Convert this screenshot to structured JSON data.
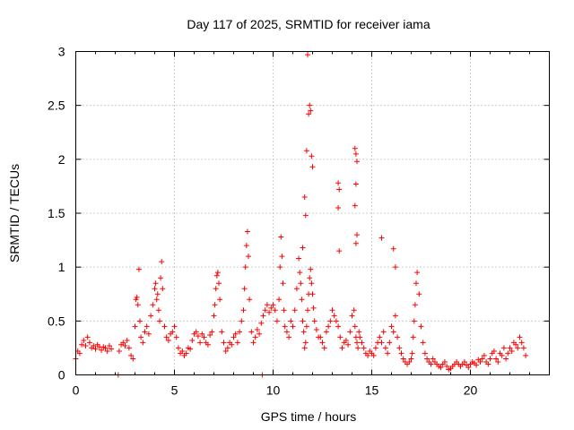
{
  "chart_data": {
    "type": "scatter",
    "title": "Day 117 of 2025, SRMTID for receiver iama",
    "xlabel": "GPS time / hours",
    "ylabel": "SRMTID / TECUs",
    "xlim": [
      0,
      24
    ],
    "ylim": [
      0,
      3
    ],
    "xticks": [
      0,
      5,
      10,
      15,
      20
    ],
    "xtick_labels": [
      "0",
      "5",
      "10",
      "15",
      "20"
    ],
    "yticks": [
      0,
      0.5,
      1,
      1.5,
      2,
      2.5,
      3
    ],
    "ytick_labels": [
      "0",
      "0.5",
      "1",
      "1.5",
      "2",
      "2.5",
      "3"
    ],
    "grid": true,
    "marker": "+",
    "color": "#ff0000",
    "series": [
      {
        "name": "SRMTID",
        "x": [
          0.0,
          0.1,
          0.2,
          0.3,
          0.4,
          0.5,
          0.6,
          0.7,
          0.8,
          0.9,
          1.0,
          1.1,
          1.2,
          1.3,
          1.4,
          1.5,
          1.6,
          1.7,
          1.8,
          2.2,
          2.3,
          2.4,
          2.5,
          2.6,
          2.7,
          2.8,
          2.9,
          3.0,
          3.05,
          3.1,
          3.15,
          3.2,
          3.25,
          3.3,
          3.4,
          3.5,
          3.6,
          3.7,
          3.8,
          3.9,
          4.0,
          4.05,
          4.1,
          4.15,
          4.2,
          4.25,
          4.3,
          4.35,
          4.4,
          4.5,
          4.6,
          4.7,
          4.8,
          4.9,
          5.0,
          5.1,
          5.2,
          5.3,
          5.4,
          5.5,
          5.6,
          5.7,
          5.8,
          5.9,
          6.0,
          6.1,
          6.2,
          6.3,
          6.4,
          6.5,
          6.6,
          6.7,
          6.8,
          6.9,
          7.0,
          7.05,
          7.1,
          7.15,
          7.2,
          7.25,
          7.3,
          7.4,
          7.5,
          7.6,
          7.7,
          7.8,
          7.9,
          8.0,
          8.1,
          8.2,
          8.3,
          8.4,
          8.5,
          8.55,
          8.6,
          8.65,
          8.7,
          8.75,
          8.8,
          8.9,
          9.0,
          9.1,
          9.2,
          9.3,
          9.4,
          9.5,
          9.6,
          9.7,
          9.8,
          9.9,
          10.0,
          10.1,
          10.2,
          10.3,
          10.35,
          10.4,
          10.45,
          10.5,
          10.55,
          10.6,
          10.7,
          10.8,
          10.9,
          11.0,
          11.1,
          11.2,
          11.3,
          11.35,
          11.4,
          11.45,
          11.5,
          11.55,
          11.6,
          11.65,
          11.7,
          11.75,
          11.8,
          11.85,
          11.9,
          11.95,
          12.0,
          12.05,
          12.1,
          12.2,
          12.3,
          12.4,
          12.5,
          12.6,
          12.7,
          12.8,
          12.9,
          13.0,
          13.1,
          13.2,
          13.3,
          13.4,
          13.5,
          13.6,
          13.7,
          13.8,
          13.9,
          14.0,
          14.1,
          14.15,
          14.2,
          14.25,
          14.3,
          14.35,
          14.4,
          14.5,
          14.6,
          14.7,
          14.8,
          14.9,
          15.0,
          15.1,
          15.2,
          15.3,
          15.4,
          15.5,
          15.6,
          15.7,
          15.8,
          15.9,
          16.0,
          16.1,
          16.2,
          16.3,
          16.4,
          16.5,
          16.6,
          16.7,
          16.8,
          16.9,
          17.0,
          17.05,
          17.1,
          17.15,
          17.2,
          17.25,
          17.3,
          17.4,
          17.5,
          17.6,
          17.7,
          17.8,
          17.9,
          18.0,
          18.1,
          18.2,
          18.3,
          18.4,
          18.5,
          18.6,
          18.7,
          18.8,
          18.9,
          19.0,
          19.1,
          19.2,
          19.3,
          19.4,
          19.5,
          19.6,
          19.7,
          19.8,
          19.9,
          20.0,
          20.1,
          20.2,
          20.3,
          20.4,
          20.5,
          20.6,
          20.7,
          20.8,
          20.9,
          21.0,
          21.1,
          21.2,
          21.3,
          21.4,
          21.5,
          21.6,
          21.7,
          21.8,
          21.9,
          22.0,
          22.1,
          22.2,
          22.3,
          22.4,
          22.5,
          22.6,
          22.7,
          22.8,
          2.15,
          9.45,
          11.75,
          11.85,
          11.8,
          11.9,
          11.7,
          11.95,
          11.6,
          12.0,
          11.65,
          11.5,
          13.3,
          13.35,
          13.3,
          13.35,
          14.15,
          14.2,
          14.25,
          14.2,
          14.15,
          14.25,
          14.2,
          15.5,
          16.1,
          16.2
        ],
        "y": [
          0.15,
          0.22,
          0.2,
          0.28,
          0.32,
          0.27,
          0.35,
          0.3,
          0.25,
          0.27,
          0.24,
          0.28,
          0.26,
          0.23,
          0.26,
          0.25,
          0.22,
          0.27,
          0.24,
          0.22,
          0.28,
          0.3,
          0.27,
          0.32,
          0.25,
          0.18,
          0.15,
          0.45,
          0.7,
          0.72,
          0.65,
          0.98,
          0.5,
          0.35,
          0.3,
          0.4,
          0.45,
          0.38,
          0.55,
          0.65,
          0.8,
          0.85,
          0.7,
          0.75,
          0.6,
          0.5,
          0.9,
          1.05,
          0.8,
          0.45,
          0.35,
          0.32,
          0.38,
          0.4,
          0.45,
          0.35,
          0.25,
          0.2,
          0.22,
          0.18,
          0.2,
          0.25,
          0.24,
          0.32,
          0.38,
          0.4,
          0.36,
          0.3,
          0.38,
          0.35,
          0.3,
          0.28,
          0.37,
          0.4,
          0.55,
          0.65,
          0.8,
          0.92,
          0.95,
          0.85,
          0.7,
          0.4,
          0.3,
          0.22,
          0.25,
          0.3,
          0.28,
          0.35,
          0.38,
          0.3,
          0.4,
          0.5,
          0.6,
          0.8,
          1.0,
          1.2,
          1.33,
          1.1,
          0.7,
          0.4,
          0.3,
          0.35,
          0.42,
          0.38,
          0.48,
          0.55,
          0.6,
          0.65,
          0.58,
          0.62,
          0.65,
          0.6,
          0.5,
          0.7,
          1.0,
          1.28,
          1.1,
          0.85,
          0.6,
          0.45,
          0.4,
          0.35,
          0.5,
          0.45,
          0.6,
          0.8,
          1.08,
          0.95,
          0.85,
          0.7,
          0.5,
          0.4,
          0.25,
          0.3,
          0.45,
          0.6,
          0.75,
          0.9,
          0.98,
          0.85,
          0.75,
          0.62,
          0.5,
          0.42,
          0.35,
          0.35,
          0.3,
          0.25,
          0.4,
          0.45,
          0.5,
          0.6,
          0.55,
          0.5,
          0.45,
          0.35,
          0.25,
          0.3,
          0.32,
          0.28,
          0.4,
          0.55,
          0.6,
          0.45,
          0.35,
          0.3,
          0.25,
          0.4,
          0.35,
          0.3,
          0.25,
          0.2,
          0.18,
          0.22,
          0.2,
          0.18,
          0.25,
          0.3,
          0.35,
          0.3,
          0.4,
          0.25,
          0.2,
          0.3,
          0.45,
          0.4,
          0.55,
          0.35,
          0.25,
          0.2,
          0.15,
          0.12,
          0.1,
          0.12,
          0.15,
          0.2,
          0.35,
          0.5,
          0.65,
          0.85,
          0.95,
          0.75,
          0.45,
          0.3,
          0.2,
          0.15,
          0.12,
          0.1,
          0.15,
          0.12,
          0.1,
          0.08,
          0.07,
          0.1,
          0.12,
          0.08,
          0.05,
          0.06,
          0.08,
          0.1,
          0.12,
          0.1,
          0.08,
          0.1,
          0.12,
          0.09,
          0.07,
          0.1,
          0.12,
          0.11,
          0.09,
          0.14,
          0.12,
          0.15,
          0.18,
          0.12,
          0.1,
          0.15,
          0.2,
          0.22,
          0.15,
          0.12,
          0.2,
          0.18,
          0.25,
          0.15,
          0.2,
          0.25,
          0.22,
          0.3,
          0.28,
          0.25,
          0.35,
          0.3,
          0.25,
          0.18,
          0.0,
          0.0,
          2.97,
          2.5,
          2.42,
          2.45,
          2.08,
          2.03,
          1.65,
          1.93,
          1.48,
          1.18,
          1.78,
          1.72,
          1.55,
          1.15,
          2.1,
          2.05,
          1.98,
          1.77,
          1.57,
          1.3,
          1.22,
          1.27,
          1.17,
          1.0
        ]
      }
    ]
  }
}
